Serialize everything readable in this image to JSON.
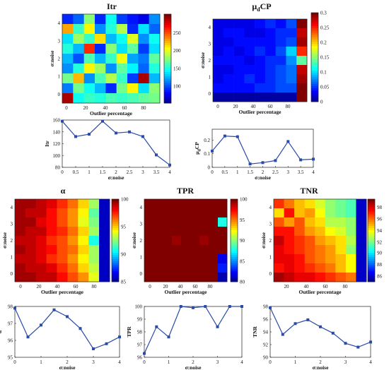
{
  "chart_data": [
    {
      "type": "heatmap",
      "title": "Itr",
      "xlabel": "Outlier percentage",
      "ylabel": "σ:noise",
      "x_ticks": [
        "0",
        "20",
        "40",
        "60",
        "80"
      ],
      "y_ticks": [
        "4",
        "3",
        "2",
        "1",
        "0"
      ],
      "colorbar_ticks": [
        "100",
        "150",
        "200",
        "250"
      ],
      "zlim": [
        55,
        300
      ],
      "grid": [
        [
          95,
          110,
          180,
          95,
          150,
          100,
          90,
          80,
          120
        ],
        [
          230,
          160,
          210,
          120,
          155,
          190,
          95,
          140,
          110
        ],
        [
          140,
          185,
          160,
          215,
          130,
          150,
          200,
          120,
          150
        ],
        [
          155,
          130,
          260,
          95,
          180,
          140,
          170,
          100,
          140
        ],
        [
          130,
          105,
          165,
          130,
          160,
          205,
          125,
          115,
          170
        ],
        [
          120,
          155,
          210,
          185,
          120,
          170,
          145,
          110,
          155
        ],
        [
          175,
          225,
          120,
          165,
          190,
          160,
          100,
          290,
          130
        ],
        [
          115,
          175,
          150,
          130,
          95,
          175,
          210,
          140,
          180
        ],
        [
          290,
          150,
          160,
          155,
          165,
          160,
          165,
          170,
          175
        ]
      ]
    },
    {
      "type": "heatmap",
      "title": "μ_dCP",
      "xlabel": "Outlier percentage",
      "ylabel": "σ:noise",
      "x_ticks": [
        "0",
        "20",
        "40",
        "60",
        "80"
      ],
      "y_ticks": [
        "4",
        "3",
        "2",
        "1",
        "0"
      ],
      "colorbar_ticks": [
        "0",
        "0.05",
        "0.1",
        "0.15",
        "0.2",
        "0.25",
        "0.3"
      ],
      "zlim": [
        0,
        0.3
      ],
      "grid": [
        [
          0.03,
          0.03,
          0.03,
          0.03,
          0.04,
          0.05,
          0.04,
          0.06,
          0.3
        ],
        [
          0.03,
          0.04,
          0.04,
          0.03,
          0.03,
          0.04,
          0.05,
          0.05,
          0.28
        ],
        [
          0.03,
          0.03,
          0.04,
          0.04,
          0.04,
          0.04,
          0.05,
          0.06,
          0.29
        ],
        [
          0.03,
          0.04,
          0.03,
          0.04,
          0.05,
          0.04,
          0.06,
          0.1,
          0.25
        ],
        [
          0.04,
          0.04,
          0.04,
          0.03,
          0.04,
          0.05,
          0.05,
          0.08,
          0.14
        ],
        [
          0.03,
          0.03,
          0.04,
          0.04,
          0.04,
          0.05,
          0.06,
          0.07,
          0.28
        ],
        [
          0.03,
          0.04,
          0.04,
          0.05,
          0.04,
          0.05,
          0.06,
          0.07,
          0.29
        ],
        [
          0.04,
          0.04,
          0.04,
          0.04,
          0.05,
          0.05,
          0.06,
          0.06,
          0.3
        ],
        [
          0.01,
          0.01,
          0.01,
          0.01,
          0.01,
          0.01,
          0.01,
          0.01,
          0.3
        ]
      ]
    },
    {
      "type": "line",
      "title": "",
      "xlabel": "σ:noise",
      "ylabel": "Itr",
      "x_ticks": [
        "0",
        "0.5",
        "1",
        "1.5",
        "2",
        "2.5",
        "3",
        "3.5",
        "4"
      ],
      "y_ticks": [
        "80",
        "100",
        "120",
        "140",
        "160"
      ],
      "xlim": [
        0,
        4
      ],
      "ylim": [
        80,
        160
      ],
      "x": [
        0,
        0.5,
        1,
        1.5,
        2,
        2.5,
        3,
        3.5,
        4
      ],
      "y": [
        158,
        132,
        136,
        158,
        138,
        140,
        132,
        101,
        84
      ]
    },
    {
      "type": "line",
      "title": "",
      "xlabel": "σ:noise",
      "ylabel": "μ_dCP",
      "x_ticks": [
        "0",
        "0.5",
        "1",
        "1.5",
        "2",
        "2.5",
        "3",
        "3.5",
        "4"
      ],
      "y_ticks": [
        "0",
        "0.1",
        "0.2"
      ],
      "xlim": [
        0,
        4
      ],
      "ylim": [
        0,
        0.28
      ],
      "x": [
        0,
        0.5,
        1,
        1.5,
        2,
        2.5,
        3,
        3.5,
        4
      ],
      "y": [
        0.12,
        0.23,
        0.225,
        0.025,
        0.035,
        0.05,
        0.19,
        0.055,
        0.06
      ]
    },
    {
      "type": "heatmap",
      "title": "α",
      "xlabel": "Outlier percentage",
      "ylabel": "σ:noise",
      "x_ticks": [
        "0",
        "20",
        "40",
        "60",
        "80"
      ],
      "y_ticks": [
        "4",
        "3",
        "2",
        "1",
        "0"
      ],
      "colorbar_ticks": [
        "85",
        "90",
        "95",
        "100"
      ],
      "zlim": [
        85,
        100
      ],
      "grid": [
        [
          99.5,
          99.5,
          99,
          98.5,
          97.5,
          96.5,
          95,
          93,
          86
        ],
        [
          99.5,
          99,
          99,
          98,
          97,
          96,
          94.5,
          92,
          86
        ],
        [
          99.5,
          99.5,
          98.5,
          98,
          97,
          96,
          94,
          92.5,
          86
        ],
        [
          99.5,
          99,
          99,
          98,
          97.5,
          96.5,
          95,
          93,
          86
        ],
        [
          99,
          99,
          98.5,
          97.5,
          97,
          96,
          94.5,
          91,
          86
        ],
        [
          99.5,
          99,
          98.5,
          98,
          97,
          96.5,
          95,
          93,
          86
        ],
        [
          99,
          99,
          98.5,
          97.5,
          97,
          96,
          94.5,
          93,
          86
        ],
        [
          99.5,
          99,
          99,
          98.5,
          97.5,
          96.5,
          95,
          93.5,
          86
        ],
        [
          99.5,
          99.5,
          99,
          99,
          98,
          97,
          96,
          94,
          86
        ]
      ]
    },
    {
      "type": "heatmap",
      "title": "TPR",
      "xlabel": "Outlier percentage",
      "ylabel": "σ:noise",
      "x_ticks": [
        "0",
        "20",
        "40",
        "60",
        "80"
      ],
      "y_ticks": [
        "4",
        "3",
        "2",
        "1",
        "0"
      ],
      "colorbar_ticks": [
        "80",
        "85",
        "90",
        "95",
        "100"
      ],
      "zlim": [
        80,
        100
      ],
      "grid": [
        [
          100,
          100,
          100,
          100,
          100,
          100,
          100,
          100,
          100
        ],
        [
          100,
          100,
          100,
          100,
          100,
          100,
          100,
          100,
          100
        ],
        [
          100,
          100,
          100,
          100,
          100,
          100,
          100,
          100,
          88
        ],
        [
          100,
          100,
          100,
          100,
          100,
          100,
          100,
          100,
          100
        ],
        [
          100,
          100,
          100,
          99.5,
          100,
          100,
          99.5,
          100,
          100
        ],
        [
          100,
          100,
          100,
          100,
          100,
          100,
          100,
          100,
          100
        ],
        [
          100,
          100,
          100,
          100,
          100,
          100,
          100,
          100,
          82
        ],
        [
          100,
          100,
          100,
          100,
          100,
          100,
          100,
          100,
          83
        ],
        [
          100,
          100,
          100,
          100,
          100,
          100,
          100,
          100,
          81
        ]
      ]
    },
    {
      "type": "heatmap",
      "title": "TNR",
      "xlabel": "Outlier percentage",
      "ylabel": "σ:noise",
      "x_ticks": [
        "20",
        "40",
        "60",
        "80"
      ],
      "y_ticks": [
        "4",
        "3",
        "2",
        "1",
        "0"
      ],
      "colorbar_ticks": [
        "86",
        "88",
        "90",
        "92",
        "94",
        "96",
        "98"
      ],
      "zlim": [
        85,
        99.5
      ],
      "grid": [
        [
          97,
          96,
          95,
          94.5,
          93.5,
          92.5,
          92,
          91.5,
          86
        ],
        [
          94.5,
          97.5,
          95,
          95.5,
          94,
          92.5,
          92,
          91.5,
          86
        ],
        [
          96.5,
          95.5,
          96.5,
          95,
          94.5,
          93,
          93,
          92.5,
          86
        ],
        [
          97.5,
          97.5,
          96.5,
          95.5,
          95,
          94,
          93.5,
          92.5,
          86
        ],
        [
          98.5,
          97.5,
          97,
          96.5,
          95.5,
          95,
          94.5,
          93,
          86
        ],
        [
          98,
          97.5,
          97,
          96.5,
          96,
          95.5,
          94.5,
          92.5,
          86
        ],
        [
          98,
          98,
          97.5,
          96.5,
          96,
          95.5,
          95,
          94,
          86
        ],
        [
          97.5,
          98,
          97.5,
          97,
          96.5,
          96,
          95,
          94,
          86
        ],
        [
          99,
          98.5,
          98,
          98,
          97.5,
          97,
          96.5,
          96,
          86
        ]
      ]
    },
    {
      "type": "line",
      "title": "",
      "xlabel": "σ:noise",
      "ylabel": "α",
      "x_ticks": [
        "0",
        "1",
        "2",
        "3",
        "4"
      ],
      "y_ticks": [
        "95",
        "96",
        "97",
        "98"
      ],
      "xlim": [
        0,
        4
      ],
      "ylim": [
        95,
        98
      ],
      "x": [
        0,
        0.5,
        1,
        1.5,
        2,
        2.5,
        3,
        3.5,
        4
      ],
      "y": [
        97.9,
        96.2,
        96.9,
        97.8,
        97.4,
        96.7,
        95.5,
        95.8,
        96.2
      ]
    },
    {
      "type": "line",
      "title": "",
      "xlabel": "σ:noise",
      "ylabel": "TPR",
      "x_ticks": [
        "0",
        "1",
        "2",
        "3",
        "4"
      ],
      "y_ticks": [
        "96",
        "97",
        "98",
        "99",
        "100"
      ],
      "xlim": [
        0,
        4
      ],
      "ylim": [
        96,
        100
      ],
      "x": [
        0,
        0.5,
        1,
        1.5,
        2,
        2.5,
        3,
        3.5,
        4
      ],
      "y": [
        96.3,
        98.4,
        97.6,
        100,
        99.9,
        100,
        98.4,
        100,
        100
      ]
    },
    {
      "type": "line",
      "title": "",
      "xlabel": "σ:noise",
      "ylabel": "TNR",
      "x_ticks": [
        "0",
        "1",
        "2",
        "3",
        "4"
      ],
      "y_ticks": [
        "90",
        "92",
        "94",
        "96",
        "98"
      ],
      "xlim": [
        0,
        4
      ],
      "ylim": [
        90,
        98
      ],
      "x": [
        0,
        0.5,
        1,
        1.5,
        2,
        2.5,
        3,
        3.5,
        4
      ],
      "y": [
        97.8,
        93.6,
        95.3,
        95.9,
        94.8,
        93.8,
        92.2,
        91.6,
        92.4
      ]
    }
  ]
}
